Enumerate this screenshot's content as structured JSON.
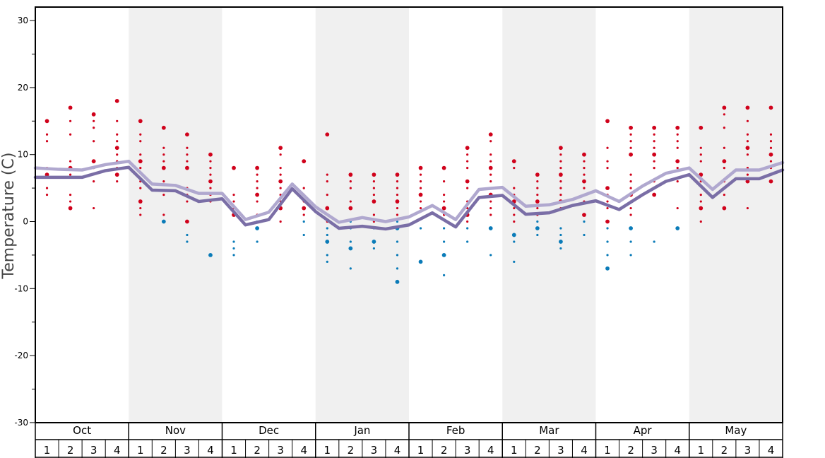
{
  "chart_data": {
    "type": "line",
    "xlabel": "",
    "ylabel": "Temperature (C)",
    "ylim": [
      -30,
      32
    ],
    "yticks": [
      30,
      20,
      10,
      0,
      -10,
      -20,
      -30
    ],
    "grid": false,
    "months": [
      "Oct",
      "Nov",
      "Dec",
      "Jan",
      "Feb",
      "Mar",
      "Apr",
      "May"
    ],
    "weeks": [
      "1",
      "2",
      "3",
      "4"
    ],
    "shaded_months": [
      "Nov",
      "Jan",
      "Mar",
      "May"
    ],
    "colors": {
      "max_line": "#b0a8cf",
      "min_line": "#7a6ea6",
      "positive_dot": "#d0021b",
      "negative_dot": "#0a7bb8",
      "shade": "#f0f0f0"
    },
    "series": [
      {
        "key": "upper",
        "values": [
          8,
          7.8,
          7.7,
          8.5,
          9,
          5.6,
          5.4,
          4.2,
          4.2,
          0.3,
          1.4,
          5.6,
          2.2,
          -0.1,
          0.6,
          0,
          0.7,
          2.4,
          0.3,
          4.8,
          5.1,
          2.3,
          2.5,
          3.3,
          4.6,
          3,
          5.3,
          7.2,
          8,
          4.8,
          7.7,
          7.7,
          8.8
        ]
      },
      {
        "key": "lower",
        "values": [
          6.6,
          6.6,
          6.6,
          7.6,
          8.1,
          4.7,
          4.6,
          3,
          3.4,
          -0.5,
          0.3,
          4.9,
          1.5,
          -1,
          -0.7,
          -1.1,
          -0.5,
          1.3,
          -0.8,
          3.6,
          3.9,
          1.1,
          1.3,
          2.4,
          3.1,
          1.8,
          4,
          6,
          7,
          3.6,
          6.4,
          6.4,
          7.7
        ]
      }
    ],
    "observations": [
      [
        15,
        13,
        12,
        8,
        7,
        5,
        4
      ],
      [
        17,
        15,
        13,
        9,
        8,
        7,
        4,
        3,
        2
      ],
      [
        16,
        15,
        14,
        12,
        9,
        8,
        6,
        2
      ],
      [
        18,
        15,
        13,
        12,
        11,
        10,
        9,
        8,
        7,
        6
      ],
      [
        15,
        13,
        12,
        10,
        9,
        8,
        6,
        5,
        3,
        2,
        1
      ],
      [
        14,
        11,
        10,
        9,
        8,
        6,
        4,
        1,
        0
      ],
      [
        13,
        11,
        10,
        9,
        8,
        5,
        4,
        3,
        0,
        -2,
        -3
      ],
      [
        10,
        9,
        8,
        7,
        6,
        5,
        4,
        3,
        -5
      ],
      [
        8,
        4,
        3,
        2,
        1,
        -3,
        -4,
        -5
      ],
      [
        8,
        7,
        6,
        5,
        4,
        3,
        1,
        0,
        -1,
        -3
      ],
      [
        11,
        10,
        8,
        7,
        6,
        5,
        4,
        3,
        2,
        0
      ],
      [
        9,
        5,
        4,
        3,
        2,
        1,
        0,
        -2
      ],
      [
        13,
        7,
        6,
        4,
        2,
        0,
        -1,
        -2,
        -3,
        -5,
        -6
      ],
      [
        7,
        6,
        5,
        3,
        2,
        0,
        -1,
        -3,
        -4,
        -7
      ],
      [
        7,
        6,
        5,
        4,
        3,
        1,
        0,
        -1,
        -3,
        -4
      ],
      [
        7,
        6,
        5,
        4,
        3,
        2,
        1,
        0,
        -1,
        -3,
        -5,
        -7,
        -9
      ],
      [
        8,
        7,
        6,
        5,
        4,
        3,
        2,
        -1,
        -6
      ],
      [
        8,
        6,
        4,
        3,
        2,
        1,
        -1,
        -3,
        -5,
        -8
      ],
      [
        11,
        10,
        9,
        8,
        6,
        5,
        3,
        2,
        1,
        0,
        -1,
        -3
      ],
      [
        13,
        12,
        10,
        9,
        8,
        7,
        6,
        5,
        4,
        3,
        2,
        1,
        -1,
        -5
      ],
      [
        9,
        8,
        5,
        4,
        3,
        2,
        1,
        0,
        -2,
        -3,
        -6
      ],
      [
        7,
        6,
        5,
        4,
        3,
        2,
        1,
        0,
        -1,
        -2
      ],
      [
        11,
        10,
        9,
        8,
        7,
        6,
        5,
        4,
        3,
        2,
        -1,
        -2,
        -3,
        -4
      ],
      [
        10,
        9,
        8,
        7,
        6,
        5,
        4,
        3,
        1,
        0,
        -2
      ],
      [
        15,
        11,
        9,
        8,
        5,
        4,
        3,
        2,
        0,
        -1,
        -3,
        -5,
        -7
      ],
      [
        14,
        13,
        12,
        11,
        10,
        7,
        6,
        5,
        4,
        3,
        2,
        1,
        -1,
        -3,
        -5
      ],
      [
        14,
        13,
        12,
        11,
        10,
        9,
        8,
        6,
        4,
        -3
      ],
      [
        14,
        13,
        12,
        11,
        9,
        8,
        6,
        2,
        -1
      ],
      [
        14,
        11,
        10,
        9,
        7,
        6,
        4,
        3,
        2,
        0
      ],
      [
        17,
        16,
        14,
        11,
        9,
        8,
        6,
        4,
        2
      ],
      [
        17,
        15,
        13,
        12,
        11,
        10,
        8,
        7,
        6,
        2
      ],
      [
        17,
        13,
        12,
        11,
        10,
        9,
        8,
        7,
        6
      ]
    ]
  }
}
